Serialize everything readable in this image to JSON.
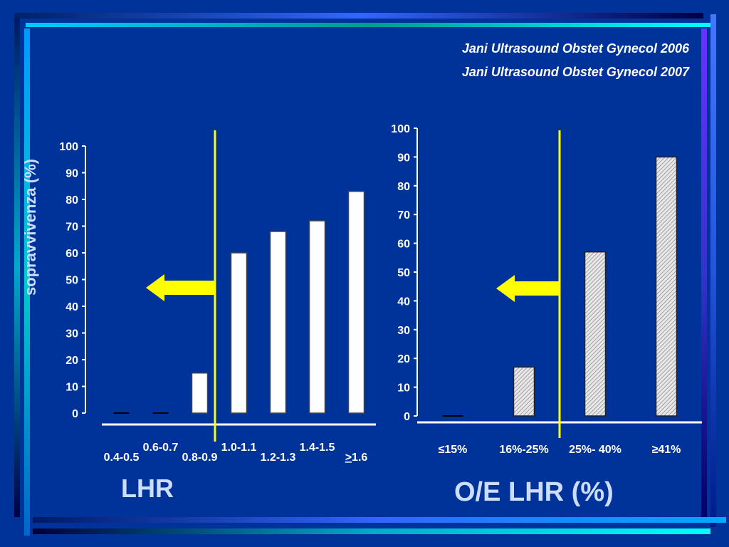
{
  "references": [
    "Jani  Ultrasound Obstet Gynecol 2006",
    "Jani  Ultrasound Obstet Gynecol 2007"
  ],
  "ylabel": "sopravvivenza (%)",
  "colors": {
    "background": "#003399",
    "marker": "#ffff00",
    "bar_left": "#ffffff",
    "bar_right": "#d0d0d0",
    "label": "#ccddff"
  },
  "chart_data": [
    {
      "type": "bar",
      "title": "",
      "xlabel": "LHR",
      "ylabel": "sopravvivenza (%)",
      "ylim": [
        0,
        100
      ],
      "yticks": [
        0,
        10,
        20,
        30,
        40,
        50,
        60,
        70,
        80,
        90,
        100
      ],
      "categories": [
        "0.4-0.5",
        "0.6-0.7",
        "0.8-0.9",
        "1.0-1.1",
        "1.2-1.3",
        "1.4-1.5",
        ">1.6"
      ],
      "values": [
        0,
        0,
        15,
        60,
        68,
        72,
        83
      ],
      "grid": false,
      "legend": "none",
      "annotations": [
        "vertical yellow line with left-pointing arrow between 0.8-0.9 and 1.0-1.1"
      ]
    },
    {
      "type": "bar",
      "title": "",
      "xlabel": "O/E LHR (%)",
      "ylabel": "",
      "ylim": [
        0,
        100
      ],
      "yticks": [
        0,
        10,
        20,
        30,
        40,
        50,
        60,
        70,
        80,
        90,
        100
      ],
      "categories": [
        "≤15%",
        "16%-25%",
        "25%- 40%",
        "≥41%"
      ],
      "values": [
        0,
        17,
        57,
        90
      ],
      "grid": false,
      "legend": "none",
      "annotations": [
        "vertical yellow line with left-pointing arrow between 16%-25% and 25%- 40%"
      ]
    }
  ]
}
